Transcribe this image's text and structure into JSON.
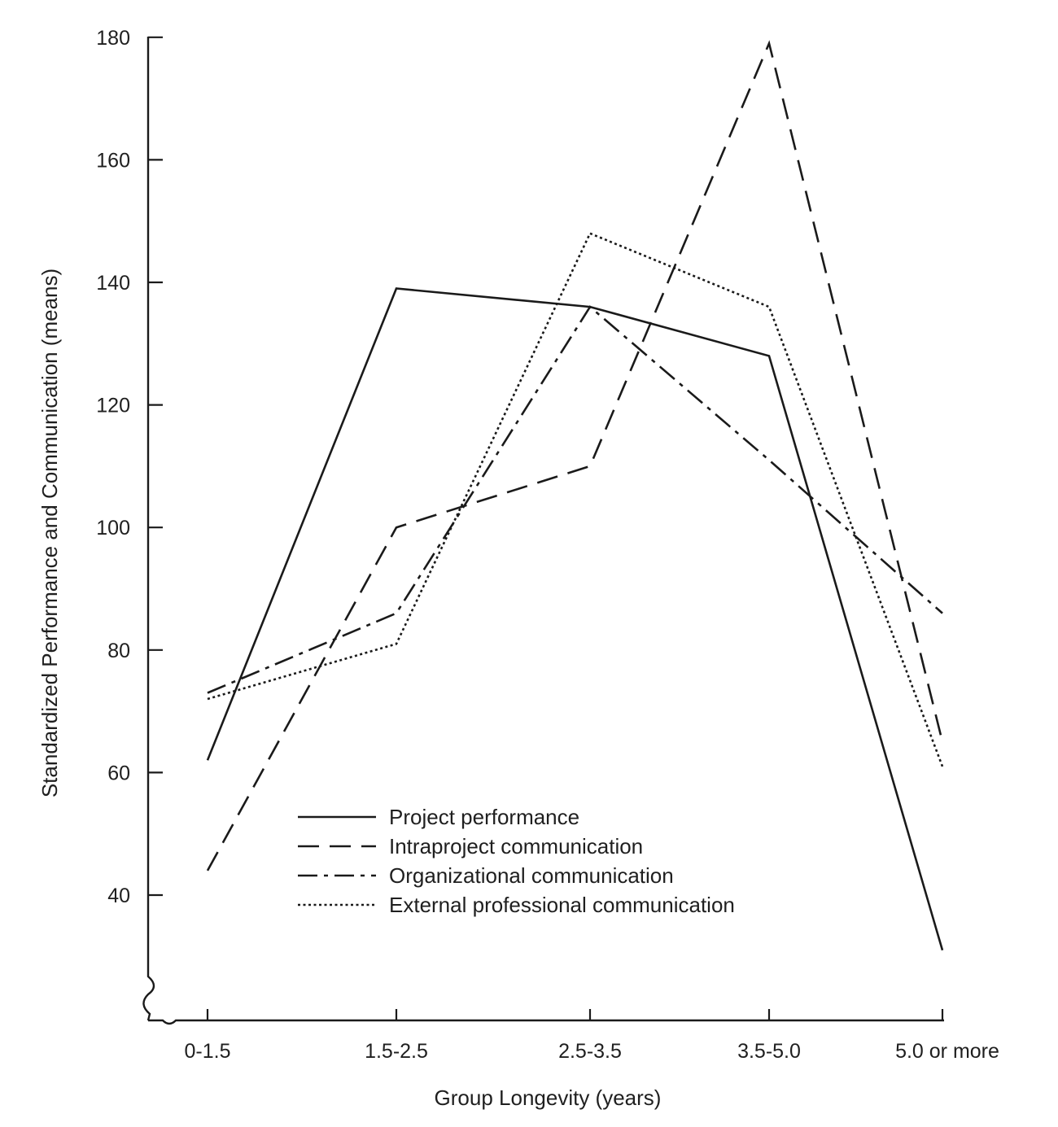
{
  "chart_data": {
    "type": "line",
    "xlabel": "Group Longevity (years)",
    "ylabel": "Standardized Performance and Communication (means)",
    "categories": [
      "0-1.5",
      "1.5-2.5",
      "2.5-3.5",
      "3.5-5.0",
      "5.0 or more"
    ],
    "y_ticks": [
      40,
      60,
      80,
      100,
      120,
      140,
      160,
      180
    ],
    "ylim": [
      24,
      181
    ],
    "y_axis_break": true,
    "grid": false,
    "legend_position": "bottom-center",
    "series": [
      {
        "name": "Project performance",
        "line_style": "solid",
        "values": [
          62,
          139,
          136,
          128,
          31
        ]
      },
      {
        "name": "Intraproject communication",
        "line_style": "dashed",
        "values": [
          44,
          100,
          110,
          179,
          65
        ]
      },
      {
        "name": "Organizational communication",
        "line_style": "dash-dot",
        "values": [
          73,
          86,
          136,
          111,
          86
        ]
      },
      {
        "name": "External professional communication",
        "line_style": "dotted",
        "values": [
          72,
          81,
          148,
          136,
          61
        ]
      }
    ],
    "line_color": "#1a1a1a"
  }
}
